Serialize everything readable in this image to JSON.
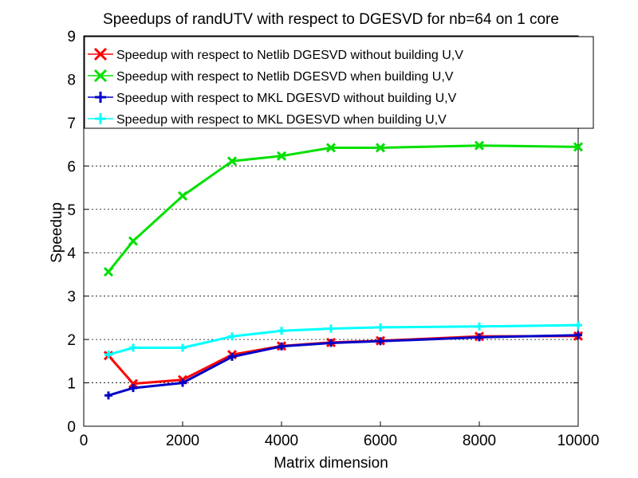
{
  "chart_data": {
    "type": "line",
    "title": "Speedups of randUTV with respect to DGESVD for nb=64 on 1 core",
    "xlabel": "Matrix dimension",
    "ylabel": "Speedup",
    "xlim": [
      0,
      10000
    ],
    "ylim": [
      0,
      9
    ],
    "xticks": [
      0,
      2000,
      4000,
      6000,
      8000,
      10000
    ],
    "yticks": [
      0,
      1,
      2,
      3,
      4,
      5,
      6,
      7,
      8,
      9
    ],
    "grid": "horizontal dotted",
    "legend_position": "top",
    "x": [
      500,
      1000,
      2000,
      3000,
      4000,
      5000,
      6000,
      8000,
      10000
    ],
    "series": [
      {
        "name": "Speedup with respect to Netlib DGESVD without building U,V",
        "color": "#ff0000",
        "marker": "x",
        "values": [
          1.63,
          0.98,
          1.07,
          1.65,
          1.85,
          1.93,
          1.97,
          2.07,
          2.08
        ]
      },
      {
        "name": "Speedup with respect to Netlib DGESVD when building U,V",
        "color": "#00e000",
        "marker": "x",
        "values": [
          3.56,
          4.27,
          5.31,
          6.11,
          6.23,
          6.42,
          6.42,
          6.47,
          6.44
        ]
      },
      {
        "name": "Speedup with respect to MKL DGESVD without building U,V",
        "color": "#0000c8",
        "marker": "+",
        "values": [
          0.71,
          0.88,
          1.0,
          1.6,
          1.84,
          1.92,
          1.96,
          2.05,
          2.1
        ]
      },
      {
        "name": "Speedup with respect to MKL DGESVD when building U,V",
        "color": "#00ffff",
        "marker": "+",
        "values": [
          1.65,
          1.81,
          1.81,
          2.07,
          2.2,
          2.25,
          2.28,
          2.3,
          2.33
        ]
      }
    ]
  }
}
